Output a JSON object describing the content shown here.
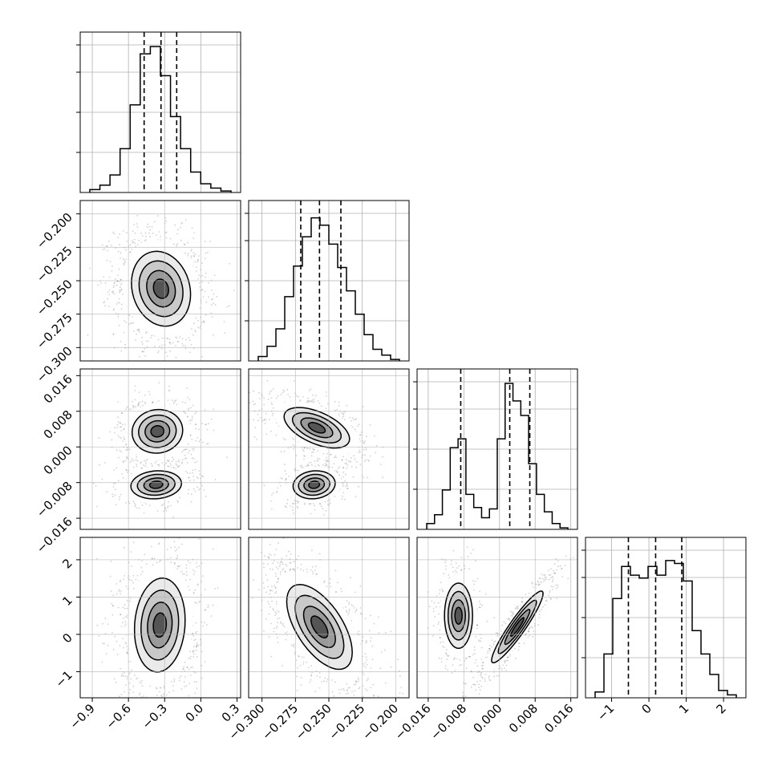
{
  "chart_data": {
    "type": "corner",
    "colors": {
      "contour": "#000000",
      "grid": "#b0b0b0",
      "scatter": "#000000"
    },
    "grid": true,
    "variables": [
      {
        "range": [
          -1.0,
          0.33
        ],
        "ticks": [
          -0.9,
          -0.6,
          -0.3,
          0.0,
          0.3
        ],
        "tick_labels": [
          "−0.9",
          "−0.6",
          "−0.3",
          "0.0",
          "0.3"
        ],
        "quantiles": [
          -0.47,
          -0.33,
          -0.2
        ]
      },
      {
        "range": [
          -0.31,
          -0.19
        ],
        "ticks": [
          -0.3,
          -0.275,
          -0.25,
          -0.225,
          -0.2
        ],
        "tick_labels": [
          "−0.300",
          "−0.275",
          "−0.250",
          "−0.225",
          "−0.200"
        ],
        "quantiles": [
          -0.271,
          -0.257,
          -0.241
        ]
      },
      {
        "range": [
          -0.0185,
          0.0175
        ],
        "ticks": [
          -0.016,
          -0.008,
          0.0,
          0.008,
          0.016
        ],
        "tick_labels": [
          "−0.016",
          "−0.008",
          "0.000",
          "0.008",
          "0.016"
        ],
        "quantiles": [
          -0.0087,
          0.0023,
          0.0068
        ]
      },
      {
        "range": [
          -1.7,
          2.6
        ],
        "ticks": [
          -1,
          0,
          1,
          2
        ],
        "tick_labels": [
          "−1",
          "0",
          "1",
          "2"
        ],
        "quantiles": [
          -0.55,
          0.18,
          0.88
        ]
      }
    ],
    "histograms": [
      [
        0.02,
        0.05,
        0.12,
        0.3,
        0.6,
        0.95,
        1.0,
        0.8,
        0.52,
        0.3,
        0.14,
        0.06,
        0.03,
        0.01
      ],
      [
        0.03,
        0.1,
        0.22,
        0.44,
        0.65,
        0.85,
        0.98,
        0.93,
        0.8,
        0.64,
        0.48,
        0.32,
        0.18,
        0.08,
        0.04,
        0.01
      ],
      [
        0.04,
        0.1,
        0.27,
        0.56,
        0.62,
        0.24,
        0.15,
        0.08,
        0.14,
        0.62,
        1.0,
        0.88,
        0.78,
        0.45,
        0.24,
        0.12,
        0.04,
        0.01
      ],
      [
        0.04,
        0.3,
        0.68,
        0.9,
        0.84,
        0.82,
        0.9,
        0.84,
        0.94,
        0.92,
        0.8,
        0.46,
        0.3,
        0.16,
        0.05,
        0.02
      ]
    ],
    "pairs": [
      {
        "x": 0,
        "y": 1,
        "blobs": [
          {
            "cx": -0.33,
            "cy": -0.256,
            "sx": 0.14,
            "sy": 0.016,
            "rho": -0.15,
            "w": 1
          }
        ]
      },
      {
        "x": 0,
        "y": 2,
        "blobs": [
          {
            "cx": -0.36,
            "cy": 0.0035,
            "sx": 0.12,
            "sy": 0.0028,
            "rho": 0.05,
            "w": 0.62
          },
          {
            "cx": -0.37,
            "cy": -0.0085,
            "sx": 0.12,
            "sy": 0.0018,
            "rho": 0.1,
            "w": 0.38
          }
        ]
      },
      {
        "x": 1,
        "y": 2,
        "blobs": [
          {
            "cx": -0.259,
            "cy": 0.0043,
            "sx": 0.014,
            "sy": 0.0026,
            "rho": -0.55,
            "w": 0.62
          },
          {
            "cx": -0.261,
            "cy": -0.0085,
            "sx": 0.009,
            "sy": 0.0018,
            "rho": 0.1,
            "w": 0.38
          }
        ]
      },
      {
        "x": 0,
        "y": 3,
        "blobs": [
          {
            "cx": -0.34,
            "cy": 0.25,
            "sx": 0.12,
            "sy": 0.72,
            "rho": 0.1,
            "w": 1
          }
        ]
      },
      {
        "x": 1,
        "y": 3,
        "blobs": [
          {
            "cx": -0.257,
            "cy": 0.2,
            "sx": 0.014,
            "sy": 0.65,
            "rho": -0.6,
            "w": 1
          }
        ]
      },
      {
        "x": 2,
        "y": 3,
        "blobs": [
          {
            "cx": -0.0092,
            "cy": 0.5,
            "sx": 0.0018,
            "sy": 0.5,
            "rho": 0.0,
            "w": 0.38
          },
          {
            "cx": 0.004,
            "cy": 0.2,
            "sx": 0.0033,
            "sy": 0.55,
            "rho": 0.93,
            "w": 0.62
          }
        ]
      }
    ]
  }
}
